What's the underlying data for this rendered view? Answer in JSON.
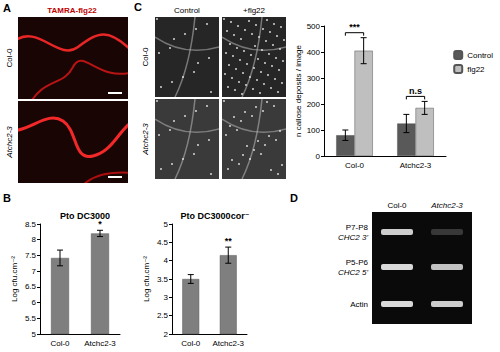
{
  "chart_data": [
    {
      "type": "bar",
      "title": "Pto DC3000",
      "categories": [
        "Col-0",
        "Atchc2-3"
      ],
      "values": [
        7.42,
        8.2
      ],
      "errors": [
        0.25,
        0.1
      ],
      "color": "#7f7f7f",
      "ylabel": "Log cfu.cm⁻²",
      "ylim": [
        5,
        8.5
      ],
      "yticks": [
        5,
        5.5,
        6,
        6.5,
        7,
        7.5,
        8,
        8.5
      ],
      "grid": false,
      "annotations": [
        {
          "category": "Atchc2-3",
          "text": "*"
        }
      ]
    },
    {
      "type": "bar",
      "title": "Pto DC3000cor⁻",
      "categories": [
        "Col-0",
        "Atchc2-3"
      ],
      "values": [
        3.5,
        4.15
      ],
      "errors": [
        0.12,
        0.22
      ],
      "color": "#7f7f7f",
      "ylabel": "Log cfu.cm⁻²",
      "ylim": [
        2,
        5
      ],
      "yticks": [
        2,
        2.5,
        3,
        3.5,
        4,
        4.5,
        5
      ],
      "grid": false,
      "annotations": [
        {
          "category": "Atchc2-3",
          "text": "**"
        }
      ]
    },
    {
      "type": "bar",
      "categories": [
        "Col-0",
        "Atchc2-3"
      ],
      "series": [
        {
          "name": "Control",
          "color": "#595959",
          "values": [
            80,
            125
          ],
          "errors": [
            20,
            35
          ]
        },
        {
          "name": "flg22",
          "color": "#bfbfbf",
          "values": [
            405,
            185
          ],
          "errors": [
            50,
            25
          ]
        }
      ],
      "ylabel": "n callose deposits / image",
      "ylim": [
        0,
        500
      ],
      "yticks": [
        0,
        100,
        200,
        300,
        400,
        500
      ],
      "grid": false,
      "legend": "right",
      "annotations": [
        {
          "category": "Col-0",
          "text": "***"
        },
        {
          "category": "Atchc2-3",
          "text": "n.s"
        }
      ]
    }
  ],
  "figure": {
    "panel_labels": [
      "A",
      "B",
      "C",
      "D"
    ],
    "panel_a": {
      "title": "TAMRA-flg22",
      "rows": [
        "Col-0",
        "Atchc2-3"
      ]
    },
    "panel_c_images": {
      "columns": [
        "Control",
        "+flg22"
      ],
      "rows": [
        "Col-0",
        "Atchc2-3"
      ]
    },
    "panel_d": {
      "columns": [
        "Col-0",
        "Atchc2-3"
      ],
      "rows": [
        [
          "P7-P8",
          "CHC2 3'"
        ],
        [
          "P5-P6",
          "CHC2 5'"
        ],
        [
          "Actin"
        ]
      ]
    }
  }
}
